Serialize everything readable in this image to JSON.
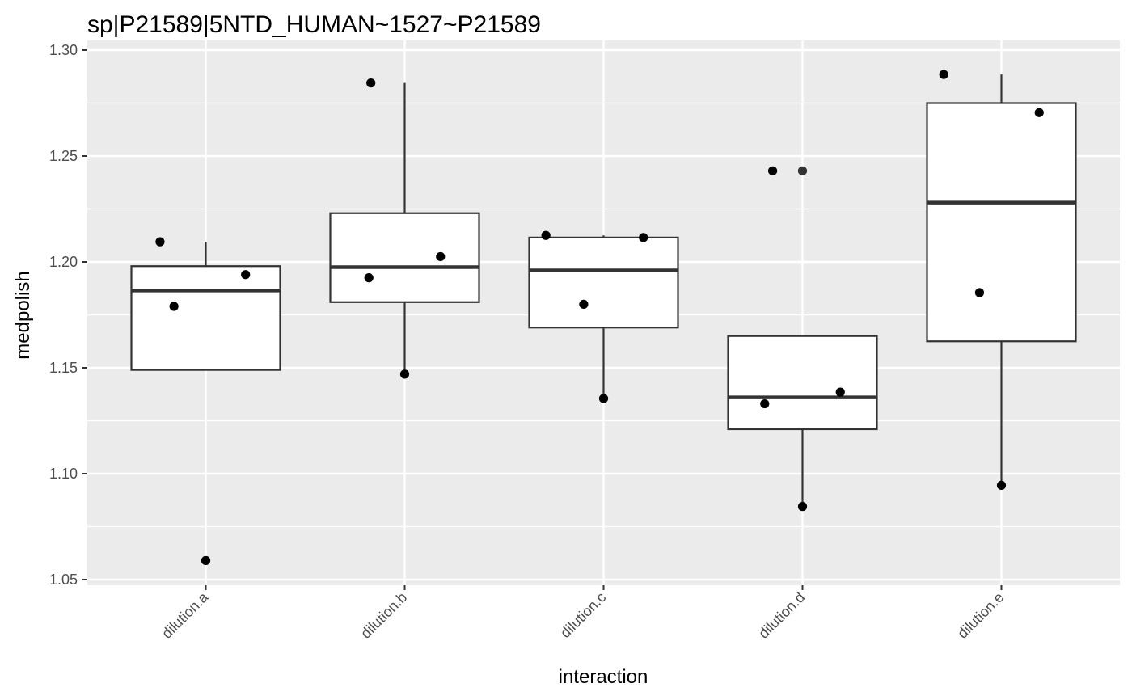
{
  "chart_data": {
    "type": "box",
    "title": "sp|P21589|5NTD_HUMAN~1527~P21589",
    "xlabel": "interaction",
    "ylabel": "medpolish",
    "categories": [
      "dilution.a",
      "dilution.b",
      "dilution.c",
      "dilution.d",
      "dilution.e"
    ],
    "ylim": [
      1.0475,
      1.3
    ],
    "yticks": [
      1.05,
      1.1,
      1.15,
      1.2,
      1.25,
      1.3
    ],
    "ytick_labels": [
      "1.05",
      "1.10",
      "1.15",
      "1.20",
      "1.25",
      "1.30"
    ],
    "grid": true,
    "legend": "none",
    "boxes": [
      {
        "category": "dilution.a",
        "whisker_low": 1.149,
        "q1": 1.149,
        "median": 1.1865,
        "q3": 1.198,
        "whisker_high": 1.2095,
        "outliers": [
          1.059
        ]
      },
      {
        "category": "dilution.b",
        "whisker_low": 1.147,
        "q1": 1.181,
        "median": 1.1975,
        "q3": 1.223,
        "whisker_high": 1.2845,
        "outliers": []
      },
      {
        "category": "dilution.c",
        "whisker_low": 1.1355,
        "q1": 1.169,
        "median": 1.196,
        "q3": 1.2115,
        "whisker_high": 1.2125,
        "outliers": []
      },
      {
        "category": "dilution.d",
        "whisker_low": 1.0845,
        "q1": 1.121,
        "median": 1.136,
        "q3": 1.165,
        "whisker_high": 1.165,
        "outliers": [
          1.243
        ]
      },
      {
        "category": "dilution.e",
        "whisker_low": 1.0945,
        "q1": 1.1625,
        "median": 1.228,
        "q3": 1.275,
        "whisker_high": 1.2885,
        "outliers": []
      }
    ],
    "points": [
      {
        "category": "dilution.a",
        "jitter": -0.23,
        "y": 1.2095
      },
      {
        "category": "dilution.a",
        "jitter": -0.16,
        "y": 1.179
      },
      {
        "category": "dilution.a",
        "jitter": 0.2,
        "y": 1.194
      },
      {
        "category": "dilution.a",
        "jitter": 0.0,
        "y": 1.059
      },
      {
        "category": "dilution.b",
        "jitter": -0.17,
        "y": 1.2845
      },
      {
        "category": "dilution.b",
        "jitter": -0.18,
        "y": 1.1925
      },
      {
        "category": "dilution.b",
        "jitter": 0.18,
        "y": 1.2025
      },
      {
        "category": "dilution.b",
        "jitter": 0.0,
        "y": 1.147
      },
      {
        "category": "dilution.c",
        "jitter": -0.29,
        "y": 1.2125
      },
      {
        "category": "dilution.c",
        "jitter": 0.2,
        "y": 1.2115
      },
      {
        "category": "dilution.c",
        "jitter": -0.1,
        "y": 1.18
      },
      {
        "category": "dilution.c",
        "jitter": 0.0,
        "y": 1.1355
      },
      {
        "category": "dilution.d",
        "jitter": -0.15,
        "y": 1.243
      },
      {
        "category": "dilution.d",
        "jitter": -0.19,
        "y": 1.133
      },
      {
        "category": "dilution.d",
        "jitter": 0.19,
        "y": 1.1385
      },
      {
        "category": "dilution.d",
        "jitter": 0.0,
        "y": 1.0845
      },
      {
        "category": "dilution.e",
        "jitter": -0.29,
        "y": 1.2885
      },
      {
        "category": "dilution.e",
        "jitter": 0.19,
        "y": 1.2705
      },
      {
        "category": "dilution.e",
        "jitter": -0.11,
        "y": 1.1855
      },
      {
        "category": "dilution.e",
        "jitter": 0.0,
        "y": 1.0945
      }
    ],
    "colors": {
      "panel": "#ebebeb",
      "grid": "#ffffff",
      "box_fill": "#ffffff",
      "box_stroke": "#333333",
      "point": "#000000",
      "outlier": "#333333"
    }
  }
}
